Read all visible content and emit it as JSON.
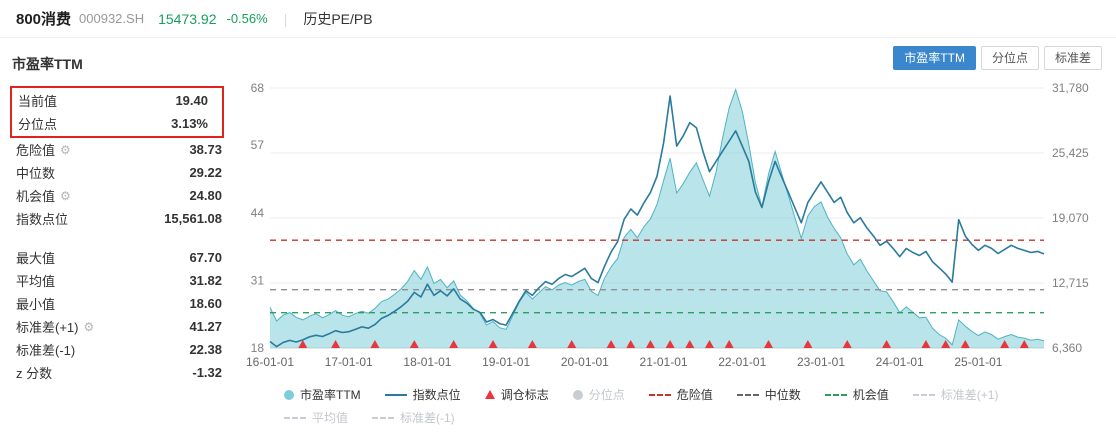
{
  "header": {
    "name": "800消费",
    "code": "000932.SH",
    "price": "15473.92",
    "change": "-0.56%",
    "tab": "历史PE/PB"
  },
  "panel": {
    "title": "市盈率TTM",
    "stats": [
      {
        "label": "当前值",
        "value": "19.40",
        "highlight": true
      },
      {
        "label": "分位点",
        "value": "3.13%",
        "highlight": true
      },
      {
        "label": "危险值",
        "value": "38.73",
        "gear": true
      },
      {
        "label": "中位数",
        "value": "29.22"
      },
      {
        "label": "机会值",
        "value": "24.80",
        "gear": true
      },
      {
        "label": "指数点位",
        "value": "15,561.08"
      },
      {
        "label": "最大值",
        "value": "67.70",
        "gap_before": true
      },
      {
        "label": "平均值",
        "value": "31.82"
      },
      {
        "label": "最小值",
        "value": "18.60"
      },
      {
        "label": "标准差(+1)",
        "value": "41.27",
        "gear": true
      },
      {
        "label": "标准差(-1)",
        "value": "22.38"
      },
      {
        "label": "z 分数",
        "value": "-1.32"
      }
    ]
  },
  "toolbar": {
    "buttons": [
      {
        "key": "pe-ttm",
        "label": "市盈率TTM",
        "active": true
      },
      {
        "key": "percentile",
        "label": "分位点",
        "active": false
      },
      {
        "key": "stddev",
        "label": "标准差",
        "active": false
      }
    ]
  },
  "colors": {
    "accent_blue": "#3a87cd",
    "up_green": "#16a05d",
    "pe_fill": "#7ecdd8",
    "pe_line": "#4fb3c4",
    "index_line": "#2a7a9e",
    "danger_red": "#c5342c",
    "median_gray": "#8f8f8f",
    "opportunity_green": "#2aa05c",
    "marker_red": "#e8353e",
    "highlight_red": "#e0241b",
    "grid_gray": "#ececec",
    "axis_text": "#7f7f7f"
  },
  "chart_data": {
    "type": "line",
    "x_start": "2016-01",
    "x_interval": "month",
    "x_ticks": [
      {
        "label": "16-01-01",
        "i": 0
      },
      {
        "label": "17-01-01",
        "i": 12
      },
      {
        "label": "18-01-01",
        "i": 24
      },
      {
        "label": "19-01-01",
        "i": 36
      },
      {
        "label": "20-01-01",
        "i": 48
      },
      {
        "label": "21-01-01",
        "i": 60
      },
      {
        "label": "22-01-01",
        "i": 72
      },
      {
        "label": "23-01-01",
        "i": 84
      },
      {
        "label": "24-01-01",
        "i": 96
      },
      {
        "label": "25-01-01",
        "i": 108
      }
    ],
    "left_axis": {
      "min": 18,
      "max": 68,
      "tick_values": [
        18,
        31,
        44,
        57,
        68
      ]
    },
    "right_axis": {
      "min": 6360,
      "max": 31780,
      "tick_values": [
        6360,
        12715,
        19070,
        25425,
        31780
      ],
      "tick_labels": [
        "6,360",
        "12,715",
        "19,070",
        "25,425",
        "31,780"
      ]
    },
    "series": [
      {
        "name": "市盈率TTM",
        "axis": "left",
        "style": "area",
        "values": [
          25.8,
          23.2,
          24.3,
          24.8,
          23.9,
          23.4,
          24.1,
          24.6,
          23.8,
          24.4,
          25.2,
          24.3,
          24.0,
          24.6,
          25.1,
          24.7,
          25.6,
          26.9,
          27.4,
          28.3,
          29.4,
          30.8,
          32.9,
          31.2,
          33.6,
          30.4,
          31.2,
          29.6,
          30.9,
          28.2,
          27.1,
          25.6,
          24.7,
          22.4,
          23.1,
          21.9,
          21.6,
          24.2,
          26.8,
          28.7,
          27.4,
          28.6,
          29.8,
          29.2,
          30.1,
          30.6,
          30.1,
          30.8,
          31.2,
          28.9,
          28.1,
          31.4,
          33.6,
          35.2,
          39.3,
          40.8,
          39.2,
          41.3,
          42.8,
          45.6,
          50.2,
          54.5,
          47.8,
          49.6,
          51.8,
          53.6,
          50.4,
          47.2,
          51.8,
          58.4,
          64.2,
          67.7,
          63.5,
          57.2,
          49.8,
          45.2,
          51.4,
          55.8,
          51.6,
          47.4,
          43.2,
          39.1,
          43.4,
          45.2,
          46.1,
          43.2,
          41.0,
          39.2,
          36.1,
          34.0,
          35.1,
          32.8,
          30.9,
          29.0,
          28.8,
          26.9,
          24.8,
          25.9,
          24.9,
          23.8,
          23.9,
          21.8,
          20.6,
          19.9,
          18.6,
          23.4,
          22.2,
          21.2,
          20.4,
          21.1,
          20.6,
          19.7,
          20.2,
          20.6,
          20.1,
          19.9,
          19.5,
          19.7,
          19.4
        ]
      },
      {
        "name": "指数点位",
        "axis": "right",
        "style": "line",
        "values": [
          7000,
          6500,
          6900,
          7100,
          6950,
          7150,
          7450,
          7600,
          7480,
          7750,
          8050,
          7880,
          7950,
          8180,
          8420,
          8300,
          8650,
          9250,
          9550,
          9950,
          10400,
          10950,
          11800,
          11350,
          12600,
          11500,
          11950,
          11450,
          12150,
          11150,
          10750,
          10150,
          9850,
          8900,
          9150,
          8750,
          8600,
          9750,
          10950,
          11950,
          11500,
          12250,
          12850,
          12600,
          13150,
          13550,
          13350,
          13750,
          14150,
          13150,
          12750,
          14350,
          15750,
          16750,
          18950,
          19950,
          19350,
          20550,
          21550,
          23150,
          26400,
          31000,
          26100,
          27100,
          28400,
          27900,
          25600,
          23600,
          24600,
          25600,
          26600,
          27600,
          26100,
          24600,
          21600,
          20100,
          22600,
          24600,
          23100,
          21600,
          20100,
          18600,
          20600,
          21600,
          22600,
          21600,
          20600,
          21100,
          19600,
          18600,
          19100,
          18100,
          17300,
          16400,
          16800,
          16100,
          15300,
          16100,
          15700,
          15400,
          15800,
          14800,
          14200,
          13600,
          12800,
          18900,
          17300,
          16500,
          15900,
          16400,
          16100,
          15600,
          16000,
          16400,
          16100,
          15900,
          15700,
          15800,
          15561
        ]
      }
    ],
    "hlines": [
      {
        "name": "危险值",
        "value": 38.73,
        "color": "#c5342c"
      },
      {
        "name": "中位数",
        "value": 29.22,
        "color": "#8f8f8f"
      },
      {
        "name": "机会值",
        "value": 24.8,
        "color": "#2aa05c"
      }
    ],
    "markers": {
      "name": "调仓标志",
      "months": [
        "2016-06",
        "2016-11",
        "2017-05",
        "2017-11",
        "2018-05",
        "2018-11",
        "2019-05",
        "2019-11",
        "2020-05",
        "2020-08",
        "2020-11",
        "2021-02",
        "2021-05",
        "2021-08",
        "2021-11",
        "2022-05",
        "2022-11",
        "2023-05",
        "2023-11",
        "2024-05",
        "2024-08",
        "2024-11",
        "2025-05",
        "2025-08"
      ]
    },
    "legend": {
      "row1": [
        {
          "label": "市盈率TTM",
          "icon": "circle",
          "color": "#7ecdd8",
          "enabled": true
        },
        {
          "label": "指数点位",
          "icon": "line",
          "color": "#2a7a9e",
          "enabled": true
        },
        {
          "label": "调仓标志",
          "icon": "triangle",
          "color": "#e8353e",
          "enabled": true
        },
        {
          "label": "分位点",
          "icon": "circle",
          "color": "#c9cdd3",
          "enabled": false
        },
        {
          "label": "危险值",
          "icon": "dashed",
          "color": "#c5342c",
          "enabled": true
        },
        {
          "label": "中位数",
          "icon": "dashed",
          "color": "#666666",
          "enabled": true
        },
        {
          "label": "机会值",
          "icon": "dashed",
          "color": "#2aa05c",
          "enabled": true
        },
        {
          "label": "标准差(+1)",
          "icon": "dashed",
          "color": "#c9cdd3",
          "enabled": false
        }
      ],
      "row2": [
        {
          "label": "平均值",
          "icon": "dashed",
          "color": "#c9cdd3",
          "enabled": false
        },
        {
          "label": "标准差(-1)",
          "icon": "dashed",
          "color": "#c9cdd3",
          "enabled": false
        }
      ]
    }
  }
}
